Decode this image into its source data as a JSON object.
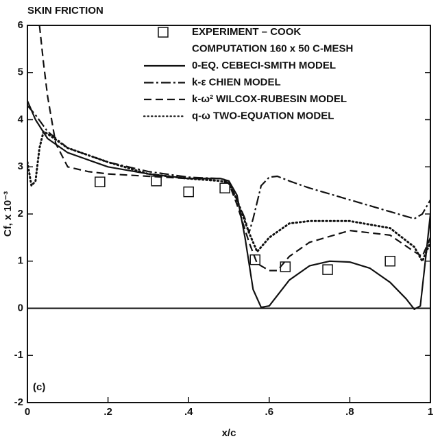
{
  "chart_data": {
    "type": "line",
    "title": "SKIN FRICTION",
    "x_label": "x/c",
    "y_label": "Cf, x 10⁻³",
    "annotation": "(c)",
    "legend_title": "COMPUTATION 160 x 50 C-MESH",
    "xlim": [
      0,
      1
    ],
    "ylim": [
      -2,
      6
    ],
    "xticks": [
      0,
      {
        "value": 0.2,
        "label": ".2"
      },
      {
        "value": 0.4,
        "label": ".4"
      },
      {
        "value": 0.6,
        "label": ".6"
      },
      {
        "value": 0.8,
        "label": ".8"
      },
      1
    ],
    "yticks": [
      -2,
      -1,
      0,
      1,
      2,
      3,
      4,
      5,
      6
    ],
    "series": [
      {
        "name": "EXPERIMENT – COOK",
        "color": "#111111",
        "style": "square",
        "x": [
          0.18,
          0.32,
          0.4,
          0.49,
          0.565,
          0.64,
          0.745,
          0.9
        ],
        "values": [
          2.68,
          2.7,
          2.47,
          2.55,
          1.03,
          0.88,
          0.82,
          1.0
        ]
      },
      {
        "name": "0-EQ. CEBECI-SMITH MODEL",
        "color": "#111111",
        "style": "solid",
        "x": [
          0,
          0.02,
          0.05,
          0.1,
          0.2,
          0.3,
          0.4,
          0.48,
          0.5,
          0.52,
          0.54,
          0.56,
          0.58,
          0.6,
          0.65,
          0.7,
          0.75,
          0.8,
          0.85,
          0.9,
          0.94,
          0.96,
          0.975,
          0.99,
          1.0
        ],
        "values": [
          4.4,
          4.0,
          3.6,
          3.3,
          3.0,
          2.85,
          2.75,
          2.75,
          2.7,
          2.4,
          1.5,
          0.4,
          0.02,
          0.05,
          0.6,
          0.9,
          1.0,
          0.98,
          0.85,
          0.55,
          0.2,
          -0.02,
          0.05,
          1.2,
          2.0
        ]
      },
      {
        "name": "k-ε CHIEN MODEL",
        "color": "#111111",
        "style": "dashdot",
        "x": [
          0,
          0.02,
          0.05,
          0.1,
          0.2,
          0.3,
          0.4,
          0.48,
          0.5,
          0.52,
          0.54,
          0.55,
          0.56,
          0.58,
          0.6,
          0.62,
          0.65,
          0.7,
          0.8,
          0.9,
          0.96,
          0.98,
          1.0
        ],
        "values": [
          4.3,
          4.1,
          3.75,
          3.4,
          3.1,
          2.9,
          2.78,
          2.75,
          2.7,
          2.3,
          1.9,
          1.6,
          1.9,
          2.6,
          2.78,
          2.8,
          2.7,
          2.55,
          2.3,
          2.05,
          1.9,
          2.0,
          2.3
        ]
      },
      {
        "name": "k-ω² WILCOX-RUBESIN MODEL",
        "color": "#111111",
        "style": "dashed",
        "x": [
          0.03,
          0.04,
          0.05,
          0.07,
          0.1,
          0.15,
          0.2,
          0.3,
          0.4,
          0.48,
          0.5,
          0.52,
          0.55,
          0.57,
          0.6,
          0.62,
          0.65,
          0.7,
          0.8,
          0.9,
          0.96,
          0.98,
          1.0
        ],
        "values": [
          6,
          5.2,
          4.5,
          3.5,
          3.0,
          2.9,
          2.85,
          2.8,
          2.75,
          2.75,
          2.65,
          2.2,
          1.4,
          0.95,
          0.8,
          0.8,
          1.1,
          1.4,
          1.65,
          1.55,
          1.2,
          1.1,
          1.5
        ]
      },
      {
        "name": "q-ω TWO-EQUATION MODEL",
        "color": "#111111",
        "style": "dotted",
        "x": [
          0,
          0.01,
          0.02,
          0.03,
          0.04,
          0.05,
          0.1,
          0.2,
          0.3,
          0.4,
          0.48,
          0.5,
          0.52,
          0.55,
          0.57,
          0.6,
          0.65,
          0.7,
          0.8,
          0.9,
          0.96,
          0.98,
          1.0
        ],
        "values": [
          3.1,
          2.6,
          2.7,
          3.4,
          3.75,
          3.7,
          3.4,
          3.1,
          2.85,
          2.75,
          2.7,
          2.65,
          2.3,
          1.6,
          1.2,
          1.5,
          1.8,
          1.85,
          1.85,
          1.7,
          1.3,
          1.0,
          1.4
        ]
      }
    ]
  }
}
